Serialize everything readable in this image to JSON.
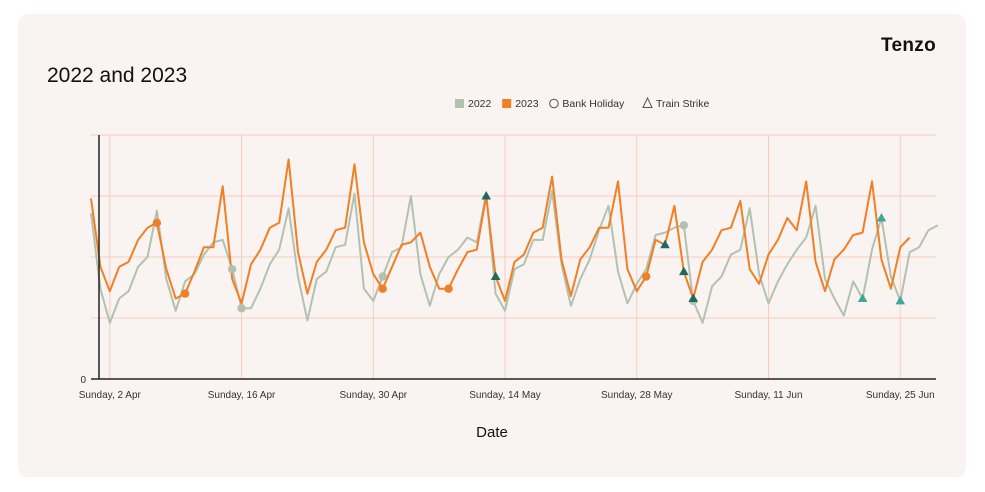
{
  "brand": {
    "logo_text": "Tenzo"
  },
  "chart_data": {
    "type": "line",
    "title": "2022 and 2023",
    "xlabel": "Date",
    "ylabel": "",
    "y_tick_labels": [
      "0"
    ],
    "x_tick_labels": [
      "Sunday, 2 Apr",
      "Sunday, 16 Apr",
      "Sunday, 30 Apr",
      "Sunday, 14 May",
      "Sunday, 28 May",
      "Sunday, 11 Jun",
      "Sunday, 25 Jun"
    ],
    "x_start": "2023-03-31",
    "x_tick_dates": [
      "2023-04-02",
      "2023-04-16",
      "2023-04-30",
      "2023-05-14",
      "2023-05-28",
      "2023-06-11",
      "2023-06-25"
    ],
    "ylim": [
      0,
      100
    ],
    "grid": true,
    "legend_position": "top-center",
    "colors": {
      "2022": "#b2c2b0",
      "2023": "#f07f26",
      "grid": "#f6cdbb",
      "axis": "#222222",
      "train_strike_dark": "#1e6a63",
      "train_strike_light": "#3fa79c"
    },
    "legend": [
      {
        "label": "2022",
        "marker": "square",
        "color": "#b2c2b0"
      },
      {
        "label": "2023",
        "marker": "square",
        "color": "#f07f26"
      },
      {
        "label": "Bank Holiday",
        "marker": "circle-outline",
        "color": "#555555"
      },
      {
        "label": "Train Strike",
        "marker": "triangle-outline",
        "color": "#555555"
      }
    ],
    "series": [
      {
        "name": "2022",
        "color": "#b2c2b0",
        "values": [
          68,
          37,
          23,
          33,
          36,
          46,
          50,
          69,
          41,
          28,
          40,
          43,
          51,
          56,
          57,
          45,
          29,
          29,
          37,
          47,
          53,
          70,
          42,
          24,
          41,
          44,
          54,
          55,
          76,
          37,
          32,
          42,
          52,
          54,
          75,
          43,
          30,
          43,
          50,
          53,
          58,
          56,
          76,
          35,
          28,
          45,
          47,
          57,
          57,
          77,
          47,
          30,
          41,
          49,
          61,
          71,
          44,
          31,
          39,
          45,
          59,
          60,
          62,
          63,
          32,
          23,
          38,
          42,
          51,
          53,
          70,
          43,
          31,
          40,
          47,
          53,
          58,
          71,
          41,
          33,
          26,
          40,
          33,
          53,
          66,
          42,
          32,
          52,
          54,
          61,
          63
        ]
      },
      {
        "name": "2023",
        "color": "#f07f26",
        "values": [
          74,
          46,
          36,
          46,
          48,
          57,
          62,
          64,
          45,
          33,
          35,
          44,
          54,
          54,
          79,
          41,
          31,
          47,
          53,
          62,
          64,
          90,
          52,
          35,
          48,
          53,
          61,
          62,
          88,
          56,
          43,
          37,
          46,
          55,
          56,
          60,
          46,
          37,
          37,
          45,
          52,
          53,
          75,
          42,
          32,
          48,
          51,
          60,
          62,
          83,
          49,
          34,
          49,
          54,
          62,
          62,
          81,
          45,
          36,
          42,
          57,
          55,
          71,
          44,
          33,
          48,
          53,
          61,
          62,
          73,
          45,
          39,
          51,
          57,
          66,
          61,
          81,
          48,
          36,
          49,
          53,
          59,
          60,
          81,
          49,
          37,
          54,
          58
        ]
      }
    ],
    "annotations": {
      "bank_holiday": [
        {
          "series": "2023",
          "date": "2023-04-07"
        },
        {
          "series": "2023",
          "date": "2023-04-10"
        },
        {
          "series": "2022",
          "date": "2023-04-15"
        },
        {
          "series": "2022",
          "date": "2023-04-16"
        },
        {
          "series": "2023",
          "date": "2023-05-01"
        },
        {
          "series": "2022",
          "date": "2023-05-01"
        },
        {
          "series": "2023",
          "date": "2023-05-08"
        },
        {
          "series": "2023",
          "date": "2023-05-29"
        },
        {
          "series": "2022",
          "date": "2023-06-02"
        },
        {
          "series": "2022",
          "date": "2023-06-03"
        }
      ],
      "train_strike": [
        {
          "series": "2023",
          "date": "2023-05-12",
          "shade": "dark"
        },
        {
          "series": "2023",
          "date": "2023-05-13",
          "shade": "dark"
        },
        {
          "series": "2023",
          "date": "2023-05-31",
          "shade": "dark"
        },
        {
          "series": "2023",
          "date": "2023-06-02",
          "shade": "dark"
        },
        {
          "series": "2023",
          "date": "2023-06-03",
          "shade": "dark"
        },
        {
          "series": "2022",
          "date": "2023-06-21",
          "shade": "light"
        },
        {
          "series": "2022",
          "date": "2023-06-23",
          "shade": "light"
        },
        {
          "series": "2022",
          "date": "2023-06-25",
          "shade": "light"
        }
      ]
    }
  }
}
